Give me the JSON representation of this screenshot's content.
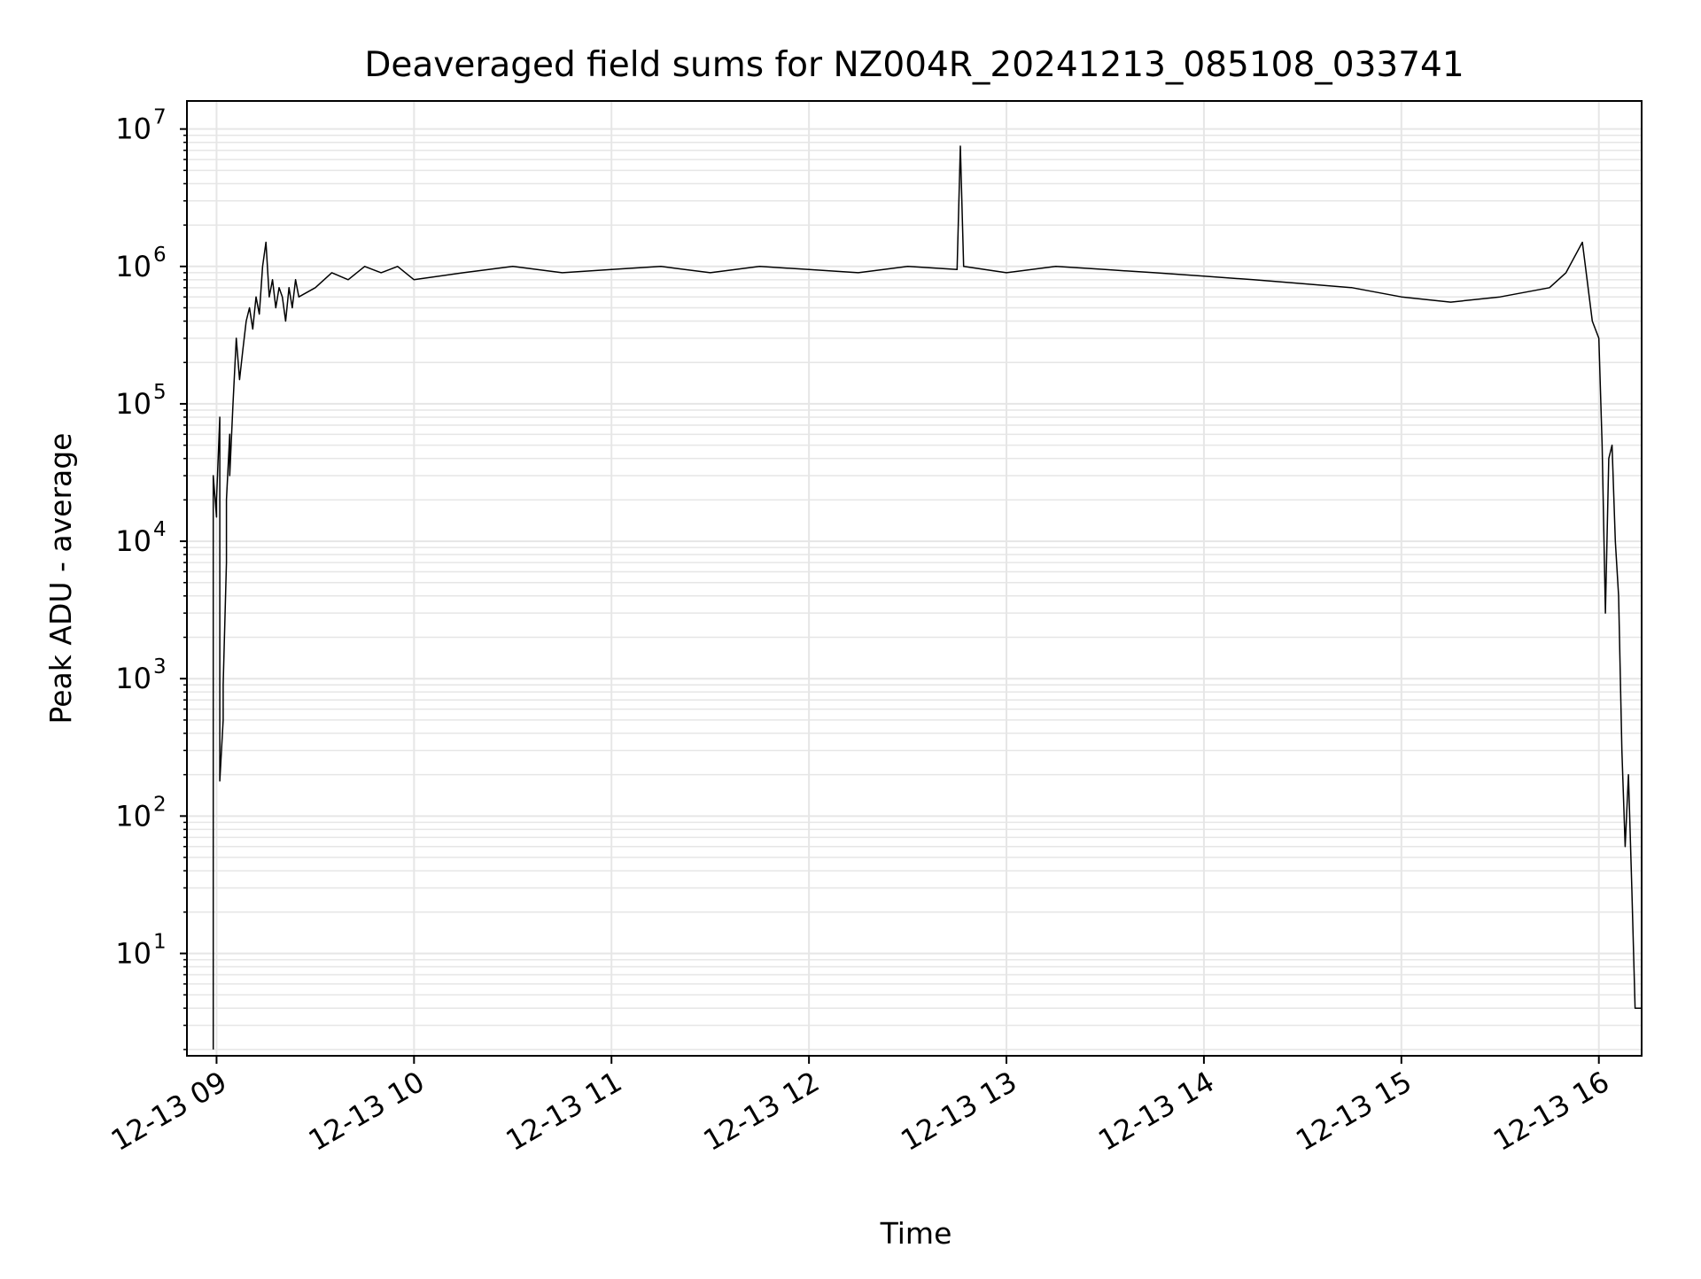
{
  "chart_data": {
    "type": "line",
    "title": "Deaveraged field sums for NZ004R_20241213_085108_033741",
    "xlabel": "Time",
    "ylabel": "Peak ADU - average",
    "yscale": "log",
    "xlim": [
      "2024-12-13 08:51",
      "2024-12-13 16:13"
    ],
    "ylim": [
      1.8,
      16000000.0
    ],
    "grid": true,
    "legend": "none",
    "line_color": "#000000",
    "grid_color": "#e6e6e6",
    "x_ticks": [
      {
        "value": "2024-12-13 09:00",
        "label": "12-13 09"
      },
      {
        "value": "2024-12-13 10:00",
        "label": "12-13 10"
      },
      {
        "value": "2024-12-13 11:00",
        "label": "12-13 11"
      },
      {
        "value": "2024-12-13 12:00",
        "label": "12-13 12"
      },
      {
        "value": "2024-12-13 13:00",
        "label": "12-13 13"
      },
      {
        "value": "2024-12-13 14:00",
        "label": "12-13 14"
      },
      {
        "value": "2024-12-13 15:00",
        "label": "12-13 15"
      },
      {
        "value": "2024-12-13 16:00",
        "label": "12-13 16"
      }
    ],
    "y_ticks": [
      {
        "value": 10,
        "base": "10",
        "exp": "1"
      },
      {
        "value": 100,
        "base": "10",
        "exp": "2"
      },
      {
        "value": 1000,
        "base": "10",
        "exp": "3"
      },
      {
        "value": 10000,
        "base": "10",
        "exp": "4"
      },
      {
        "value": 100000,
        "base": "10",
        "exp": "5"
      },
      {
        "value": 1000000,
        "base": "10",
        "exp": "6"
      },
      {
        "value": 10000000,
        "base": "10",
        "exp": "7"
      }
    ],
    "series": [
      {
        "x": [
          "2024-12-13 08:59",
          "2024-12-13 08:59",
          "2024-12-13 09:00",
          "2024-12-13 09:00",
          "2024-12-13 09:01",
          "2024-12-13 09:01",
          "2024-12-13 09:02",
          "2024-12-13 09:02",
          "2024-12-13 09:03",
          "2024-12-13 09:03",
          "2024-12-13 09:04",
          "2024-12-13 09:04",
          "2024-12-13 09:05",
          "2024-12-13 09:06",
          "2024-12-13 09:07",
          "2024-12-13 09:08",
          "2024-12-13 09:09",
          "2024-12-13 09:10",
          "2024-12-13 09:11",
          "2024-12-13 09:12",
          "2024-12-13 09:13",
          "2024-12-13 09:14",
          "2024-12-13 09:15",
          "2024-12-13 09:16",
          "2024-12-13 09:17",
          "2024-12-13 09:18",
          "2024-12-13 09:19",
          "2024-12-13 09:20",
          "2024-12-13 09:21",
          "2024-12-13 09:22",
          "2024-12-13 09:23",
          "2024-12-13 09:24",
          "2024-12-13 09:25",
          "2024-12-13 09:30",
          "2024-12-13 09:35",
          "2024-12-13 09:40",
          "2024-12-13 09:45",
          "2024-12-13 09:50",
          "2024-12-13 09:55",
          "2024-12-13 10:00",
          "2024-12-13 10:15",
          "2024-12-13 10:30",
          "2024-12-13 10:45",
          "2024-12-13 11:00",
          "2024-12-13 11:15",
          "2024-12-13 11:30",
          "2024-12-13 11:45",
          "2024-12-13 12:00",
          "2024-12-13 12:15",
          "2024-12-13 12:30",
          "2024-12-13 12:45",
          "2024-12-13 12:46",
          "2024-12-13 12:47",
          "2024-12-13 13:00",
          "2024-12-13 13:15",
          "2024-12-13 13:30",
          "2024-12-13 13:45",
          "2024-12-13 14:00",
          "2024-12-13 14:15",
          "2024-12-13 14:30",
          "2024-12-13 14:45",
          "2024-12-13 15:00",
          "2024-12-13 15:15",
          "2024-12-13 15:30",
          "2024-12-13 15:45",
          "2024-12-13 15:50",
          "2024-12-13 15:55",
          "2024-12-13 15:58",
          "2024-12-13 16:00",
          "2024-12-13 16:01",
          "2024-12-13 16:02",
          "2024-12-13 16:03",
          "2024-12-13 16:04",
          "2024-12-13 16:05",
          "2024-12-13 16:06",
          "2024-12-13 16:07",
          "2024-12-13 16:08",
          "2024-12-13 16:09",
          "2024-12-13 16:10",
          "2024-12-13 16:11",
          "2024-12-13 16:12",
          "2024-12-13 16:13"
        ],
        "y": [
          2,
          30000,
          15000,
          20000,
          80000,
          180,
          500,
          900,
          7000,
          20000,
          60000,
          30000,
          100000,
          300000,
          150000,
          250000,
          400000,
          500000,
          350000,
          600000,
          450000,
          1000000,
          1500000,
          600000,
          800000,
          500000,
          700000,
          600000,
          400000,
          700000,
          500000,
          800000,
          600000,
          700000,
          900000,
          800000,
          1000000,
          900000,
          1000000,
          800000,
          900000,
          1000000,
          900000,
          950000,
          1000000,
          900000,
          1000000,
          950000,
          900000,
          1000000,
          950000,
          7500000,
          1000000,
          900000,
          1000000,
          950000,
          900000,
          850000,
          800000,
          750000,
          700000,
          600000,
          550000,
          600000,
          700000,
          900000,
          1500000,
          400000,
          300000,
          50000,
          3000,
          40000,
          50000,
          10000,
          4000,
          300,
          60,
          200,
          30,
          4,
          4,
          4
        ]
      }
    ]
  }
}
